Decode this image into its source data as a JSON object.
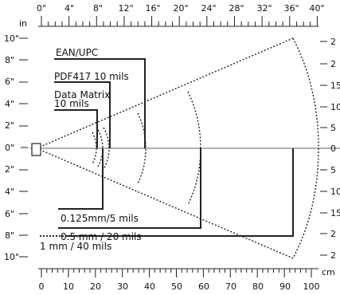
{
  "top_axis": {
    "unit_label": "in",
    "labels": [
      "0\"",
      "4\"",
      "8\"",
      "12\"",
      "16\"",
      "20\"",
      "24\"",
      "28\"",
      "32\"",
      "36\"",
      "40\""
    ]
  },
  "bottom_axis": {
    "unit_label": "cm",
    "labels": [
      "0",
      "10",
      "20",
      "30",
      "40",
      "50",
      "60",
      "70",
      "80",
      "90",
      "100"
    ]
  },
  "left_axis": {
    "labels": [
      "10\"",
      "8\"",
      "6\"",
      "4\"",
      "2\"",
      "0\"",
      "2\"",
      "4\"",
      "6\"",
      "8\"",
      "10\""
    ]
  },
  "right_axis": {
    "labels": [
      "2",
      "2",
      "15",
      "10",
      "5",
      "0",
      "5",
      "10",
      "15",
      "2",
      "2"
    ]
  },
  "symbologies": [
    {
      "label": "EAN/UPC",
      "reach_in": 15.5
    },
    {
      "label": "PDF417 10 mils",
      "reach_in": 10.2
    },
    {
      "label": "Data Matrix",
      "reach_in": 8.5
    },
    {
      "label": "10 mils",
      "reach_in": 8.5
    },
    {
      "label": "0.125mm/5 mils",
      "reach_in": 8.7
    },
    {
      "label": "0.5 mm / 20 mils",
      "reach_in": 24.0
    },
    {
      "label": "1 mm / 40 mils",
      "reach_in": 36.8
    }
  ]
}
